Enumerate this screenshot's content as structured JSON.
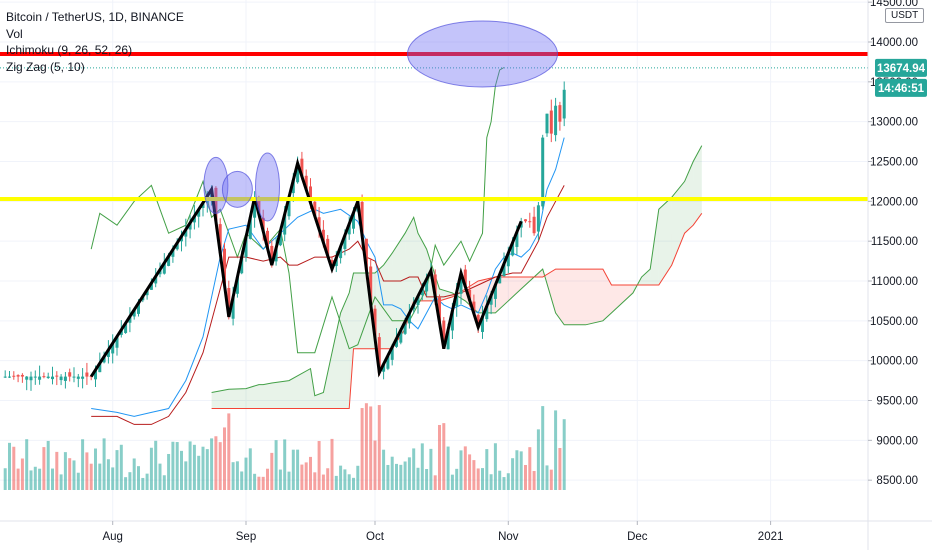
{
  "legend": {
    "title": "Bitcoin / TetherUS, 1D, BINANCE",
    "vol": "Vol",
    "ichimoku": "Ichimoku (9, 26, 52, 26)",
    "zigzag": "Zig Zag (5, 10)"
  },
  "unit": "USDT",
  "price_label": "13674.94",
  "countdown_label": "14:46:51",
  "colors": {
    "up": "#26a69a",
    "down": "#ef5350",
    "resistance": "#ff0000",
    "support": "#ffff00",
    "highlight": "#6b6bf2",
    "zigzag": "#000000",
    "price_label_bg": "#26a69a"
  },
  "chart_data": {
    "type": "candlestick",
    "y_ticks": [
      "14500.00",
      "14000.00",
      "13500.00",
      "13000.00",
      "12500.00",
      "12000.00",
      "11500.00",
      "11000.00",
      "10500.00",
      "10000.00",
      "9500.00",
      "9000.00",
      "8500.00"
    ],
    "x_ticks": [
      "Aug",
      "Sep",
      "Oct",
      "Nov",
      "Dec",
      "2021"
    ],
    "ylim": [
      8100,
      14600
    ],
    "horizontal_lines": [
      {
        "name": "resistance",
        "value": 13850
      },
      {
        "name": "support",
        "value": 12030
      }
    ],
    "current_price": 13674.94,
    "zigzag_points": [
      [
        -36,
        9800
      ],
      [
        -8,
        12150
      ],
      [
        -4,
        10550
      ],
      [
        2,
        12050
      ],
      [
        6,
        11200
      ],
      [
        12,
        12480
      ],
      [
        20,
        11150
      ],
      [
        26,
        12000
      ],
      [
        31,
        9850
      ],
      [
        43,
        11130
      ],
      [
        46,
        10150
      ],
      [
        50,
        11100
      ],
      [
        54,
        10420
      ],
      [
        64,
        11750
      ]
    ],
    "ichimoku_cloud": {
      "span_a": [
        [
          -8,
          9600
        ],
        [
          -4,
          9640
        ],
        [
          0,
          9650
        ],
        [
          3,
          9700
        ],
        [
          4,
          9700
        ],
        [
          6,
          9720
        ],
        [
          10,
          9750
        ],
        [
          15,
          9900
        ],
        [
          16,
          9560
        ],
        [
          18,
          9600
        ],
        [
          20,
          10100
        ],
        [
          22,
          10600
        ],
        [
          24,
          10850
        ],
        [
          25,
          11100
        ],
        [
          30,
          11100
        ],
        [
          32,
          11200
        ],
        [
          34,
          11350
        ],
        [
          37,
          11600
        ],
        [
          39,
          11800
        ],
        [
          40,
          11600
        ],
        [
          42,
          11400
        ],
        [
          45,
          10900
        ],
        [
          48,
          10850
        ],
        [
          51,
          10750
        ],
        [
          54,
          10600
        ],
        [
          58,
          10600
        ],
        [
          63,
          10850
        ],
        [
          69,
          11150
        ],
        [
          72,
          10600
        ],
        [
          74,
          10450
        ],
        [
          79,
          10450
        ],
        [
          83,
          10500
        ],
        [
          85,
          10600
        ],
        [
          90,
          10850
        ],
        [
          92,
          11050
        ],
        [
          94,
          11150
        ],
        [
          96,
          11900
        ],
        [
          99,
          12050
        ],
        [
          102,
          12250
        ],
        [
          104,
          12500
        ],
        [
          106,
          12700
        ]
      ],
      "span_b": [
        [
          -8,
          9400
        ],
        [
          -4,
          9400
        ],
        [
          0,
          9400
        ],
        [
          3,
          9400
        ],
        [
          4,
          9400
        ],
        [
          6,
          9400
        ],
        [
          10,
          9400
        ],
        [
          15,
          9400
        ],
        [
          16,
          9400
        ],
        [
          18,
          9400
        ],
        [
          20,
          9400
        ],
        [
          22,
          9400
        ],
        [
          24,
          9400
        ],
        [
          25,
          10150
        ],
        [
          30,
          10150
        ],
        [
          32,
          10150
        ],
        [
          34,
          10150
        ],
        [
          37,
          10400
        ],
        [
          39,
          10750
        ],
        [
          40,
          10750
        ],
        [
          42,
          10750
        ],
        [
          45,
          10750
        ],
        [
          48,
          10800
        ],
        [
          51,
          10900
        ],
        [
          54,
          11000
        ],
        [
          58,
          11050
        ],
        [
          63,
          11050
        ],
        [
          69,
          11050
        ],
        [
          72,
          11150
        ],
        [
          74,
          11150
        ],
        [
          79,
          11150
        ],
        [
          83,
          11150
        ],
        [
          85,
          10950
        ],
        [
          90,
          10950
        ],
        [
          92,
          10950
        ],
        [
          94,
          10950
        ],
        [
          96,
          10950
        ],
        [
          99,
          11200
        ],
        [
          102,
          11600
        ],
        [
          104,
          11700
        ],
        [
          106,
          11850
        ]
      ]
    },
    "chikou_span": [
      [
        -36,
        11400
      ],
      [
        -34,
        11850
      ],
      [
        -30,
        11700
      ],
      [
        -26,
        12000
      ],
      [
        -22,
        12200
      ],
      [
        -18,
        11600
      ],
      [
        -14,
        11700
      ],
      [
        -10,
        12250
      ],
      [
        -8,
        11800
      ],
      [
        -6,
        11900
      ],
      [
        -2,
        11300
      ],
      [
        0,
        11600
      ],
      [
        4,
        11400
      ],
      [
        8,
        11650
      ],
      [
        10,
        11100
      ],
      [
        12,
        10100
      ],
      [
        16,
        10100
      ],
      [
        20,
        10800
      ],
      [
        24,
        10150
      ],
      [
        26,
        10200
      ],
      [
        30,
        10800
      ],
      [
        34,
        10500
      ],
      [
        38,
        10500
      ],
      [
        42,
        10900
      ],
      [
        44,
        11450
      ],
      [
        46,
        11200
      ],
      [
        50,
        11500
      ],
      [
        52,
        11250
      ],
      [
        55,
        11600
      ],
      [
        56,
        12800
      ],
      [
        57,
        13000
      ],
      [
        58,
        13450
      ],
      [
        59,
        13650
      ],
      [
        60,
        13680
      ]
    ],
    "tenkan_sen": [
      [
        -36,
        9400
      ],
      [
        -30,
        9350
      ],
      [
        -26,
        9300
      ],
      [
        -22,
        9350
      ],
      [
        -18,
        9400
      ],
      [
        -14,
        9750
      ],
      [
        -10,
        10300
      ],
      [
        -6,
        11300
      ],
      [
        -4,
        11650
      ],
      [
        0,
        11700
      ],
      [
        4,
        11400
      ],
      [
        8,
        11600
      ],
      [
        12,
        11800
      ],
      [
        16,
        11900
      ],
      [
        18,
        11850
      ],
      [
        22,
        11900
      ],
      [
        26,
        11750
      ],
      [
        28,
        11500
      ],
      [
        30,
        11300
      ],
      [
        32,
        10700
      ],
      [
        34,
        10700
      ],
      [
        36,
        10650
      ],
      [
        38,
        10500
      ],
      [
        40,
        10400
      ],
      [
        42,
        10600
      ],
      [
        44,
        10800
      ],
      [
        46,
        10700
      ],
      [
        48,
        10650
      ],
      [
        50,
        10700
      ],
      [
        52,
        10650
      ],
      [
        54,
        10600
      ],
      [
        56,
        10850
      ],
      [
        58,
        11150
      ],
      [
        60,
        11300
      ],
      [
        62,
        11350
      ],
      [
        64,
        11300
      ],
      [
        66,
        11400
      ],
      [
        68,
        11600
      ],
      [
        70,
        12150
      ],
      [
        72,
        12400
      ],
      [
        74,
        12800
      ]
    ],
    "kijun_sen": [
      [
        -36,
        9300
      ],
      [
        -30,
        9300
      ],
      [
        -26,
        9200
      ],
      [
        -22,
        9200
      ],
      [
        -18,
        9300
      ],
      [
        -14,
        9600
      ],
      [
        -10,
        10100
      ],
      [
        -6,
        10900
      ],
      [
        -4,
        11300
      ],
      [
        0,
        11300
      ],
      [
        4,
        11250
      ],
      [
        8,
        11300
      ],
      [
        10,
        11200
      ],
      [
        12,
        11200
      ],
      [
        16,
        11300
      ],
      [
        20,
        11300
      ],
      [
        24,
        11400
      ],
      [
        26,
        11500
      ],
      [
        28,
        11300
      ],
      [
        30,
        11250
      ],
      [
        32,
        11000
      ],
      [
        34,
        11000
      ],
      [
        36,
        11000
      ],
      [
        38,
        11050
      ],
      [
        40,
        11050
      ],
      [
        42,
        10800
      ],
      [
        46,
        10800
      ],
      [
        50,
        10850
      ],
      [
        54,
        10950
      ],
      [
        58,
        11050
      ],
      [
        62,
        11100
      ],
      [
        64,
        11100
      ],
      [
        66,
        11300
      ],
      [
        68,
        11500
      ],
      [
        70,
        11800
      ],
      [
        72,
        12000
      ],
      [
        74,
        12200
      ]
    ],
    "highlights": [
      {
        "x": -7,
        "y": 12100
      },
      {
        "x": -2,
        "y": 12050
      },
      {
        "x": 5,
        "y": 12080
      },
      {
        "x": 55,
        "y": 13850
      }
    ]
  }
}
